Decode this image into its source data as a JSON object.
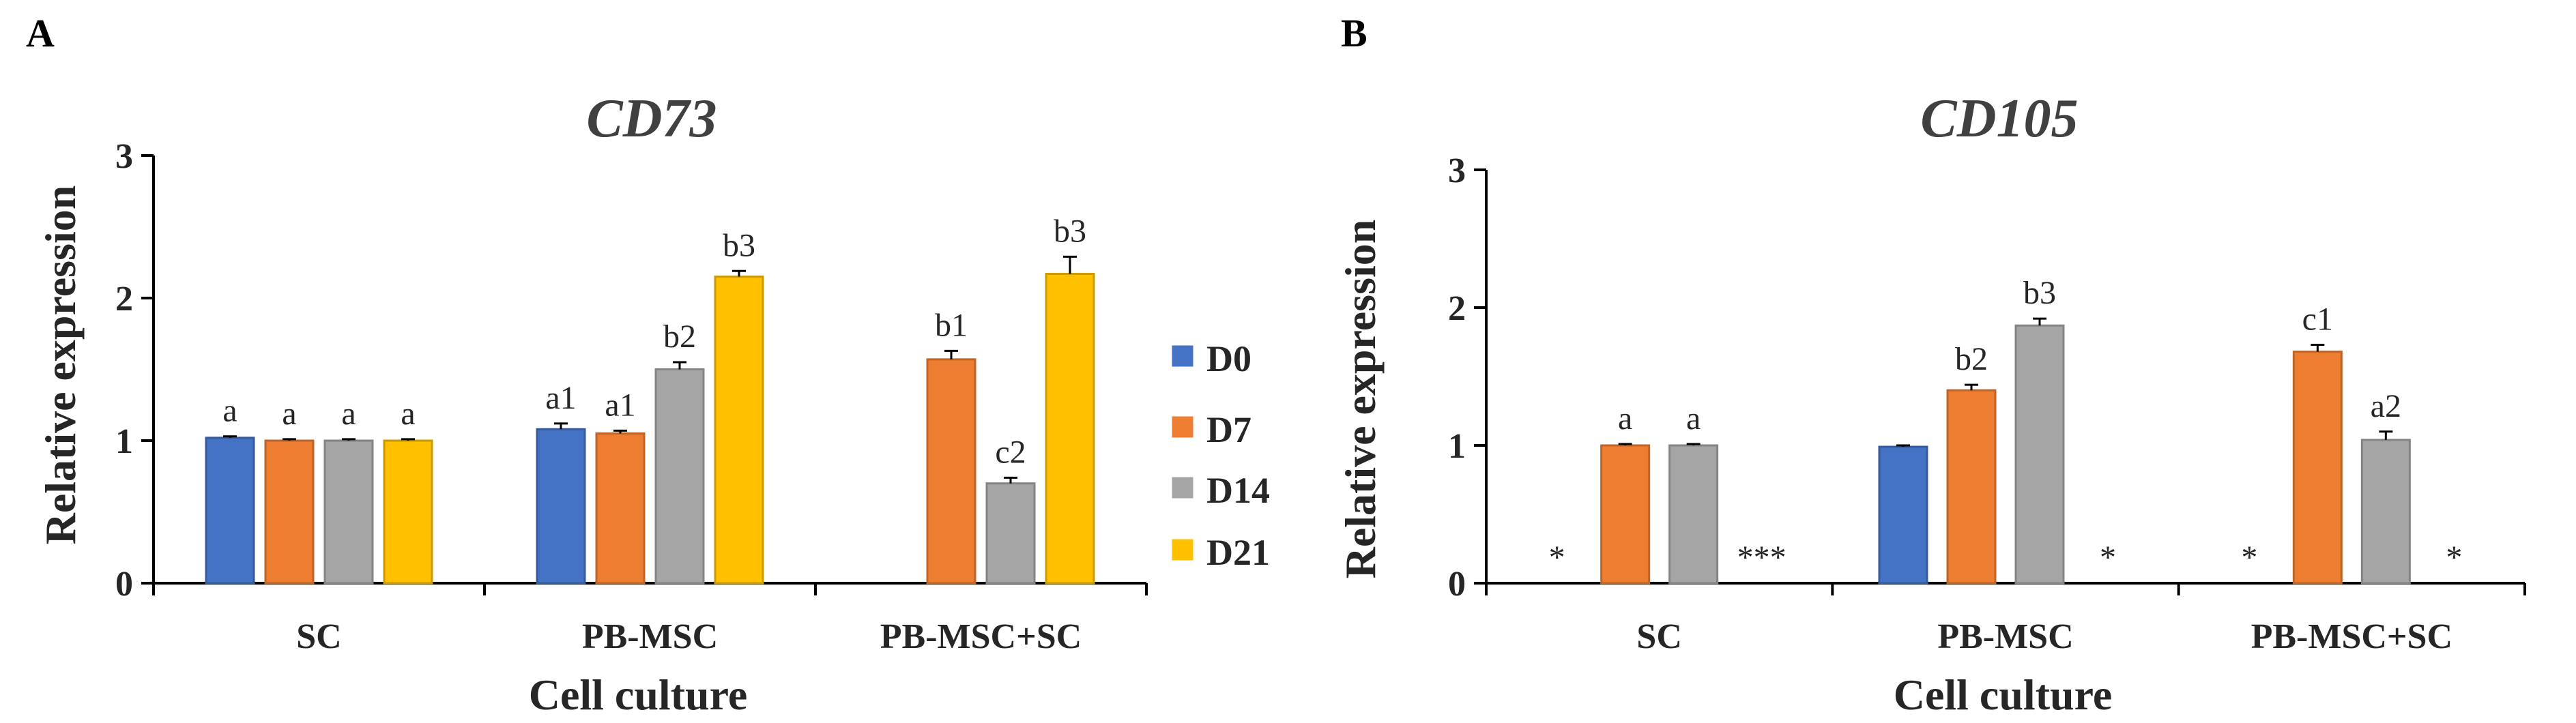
{
  "legend": [
    {
      "label": "D0",
      "color": "#4472C4"
    },
    {
      "label": "D7",
      "color": "#ED7D31"
    },
    {
      "label": "D14",
      "color": "#A5A5A5"
    },
    {
      "label": "D21",
      "color": "#FFC000"
    }
  ],
  "chart_data": [
    {
      "type": "bar",
      "panel": "A",
      "title": "CD73",
      "xlabel": "Cell culture",
      "ylabel": "Relative expression",
      "ylim": [
        0,
        3
      ],
      "yticks": [
        0,
        1,
        2,
        3
      ],
      "categories": [
        "SC",
        "PB-MSC",
        "PB-MSC+SC"
      ],
      "series": [
        {
          "name": "D0",
          "values": [
            1.02,
            1.08,
            null
          ],
          "errors": [
            0.01,
            0.04,
            null
          ],
          "labels": [
            "a",
            "a1",
            null
          ],
          "mark_text": [
            null,
            null,
            null
          ]
        },
        {
          "name": "D7",
          "values": [
            1.0,
            1.05,
            1.57
          ],
          "errors": [
            0.01,
            0.02,
            0.06
          ],
          "labels": [
            "a",
            "a1",
            "b1"
          ],
          "mark_text": [
            null,
            null,
            null
          ]
        },
        {
          "name": "D14",
          "values": [
            1.0,
            1.5,
            0.7
          ],
          "errors": [
            0.01,
            0.05,
            0.04
          ],
          "labels": [
            "a",
            "b2",
            "c2"
          ],
          "mark_text": [
            null,
            null,
            null
          ]
        },
        {
          "name": "D21",
          "values": [
            1.0,
            2.15,
            2.17
          ],
          "errors": [
            0.01,
            0.04,
            0.12
          ],
          "labels": [
            "a",
            "b3",
            "b3"
          ],
          "mark_text": [
            null,
            null,
            null
          ]
        }
      ]
    },
    {
      "type": "bar",
      "panel": "B",
      "title": "CD105",
      "xlabel": "Cell culture",
      "ylabel": "Relative expression",
      "ylim": [
        0,
        3
      ],
      "yticks": [
        0,
        1,
        2,
        3
      ],
      "categories": [
        "SC",
        "PB-MSC",
        "PB-MSC+SC"
      ],
      "series": [
        {
          "name": "D0",
          "values": [
            null,
            0.99,
            null
          ],
          "errors": [
            null,
            0.01,
            null
          ],
          "labels": [
            null,
            null,
            null
          ],
          "mark_text": [
            "*",
            null,
            "*"
          ]
        },
        {
          "name": "D7",
          "values": [
            1.0,
            1.4,
            1.68
          ],
          "errors": [
            0.01,
            0.04,
            0.05
          ],
          "labels": [
            "a",
            "b2",
            "c1"
          ],
          "mark_text": [
            null,
            null,
            null
          ]
        },
        {
          "name": "D14",
          "values": [
            1.0,
            1.87,
            1.04
          ],
          "errors": [
            0.01,
            0.05,
            0.06
          ],
          "labels": [
            "a",
            "b3",
            "a2"
          ],
          "mark_text": [
            null,
            null,
            null
          ]
        },
        {
          "name": "D21",
          "values": [
            null,
            null,
            null
          ],
          "errors": [
            null,
            null,
            null
          ],
          "labels": [
            null,
            null,
            null
          ],
          "mark_text": [
            "***",
            "*",
            "*"
          ]
        }
      ]
    }
  ]
}
